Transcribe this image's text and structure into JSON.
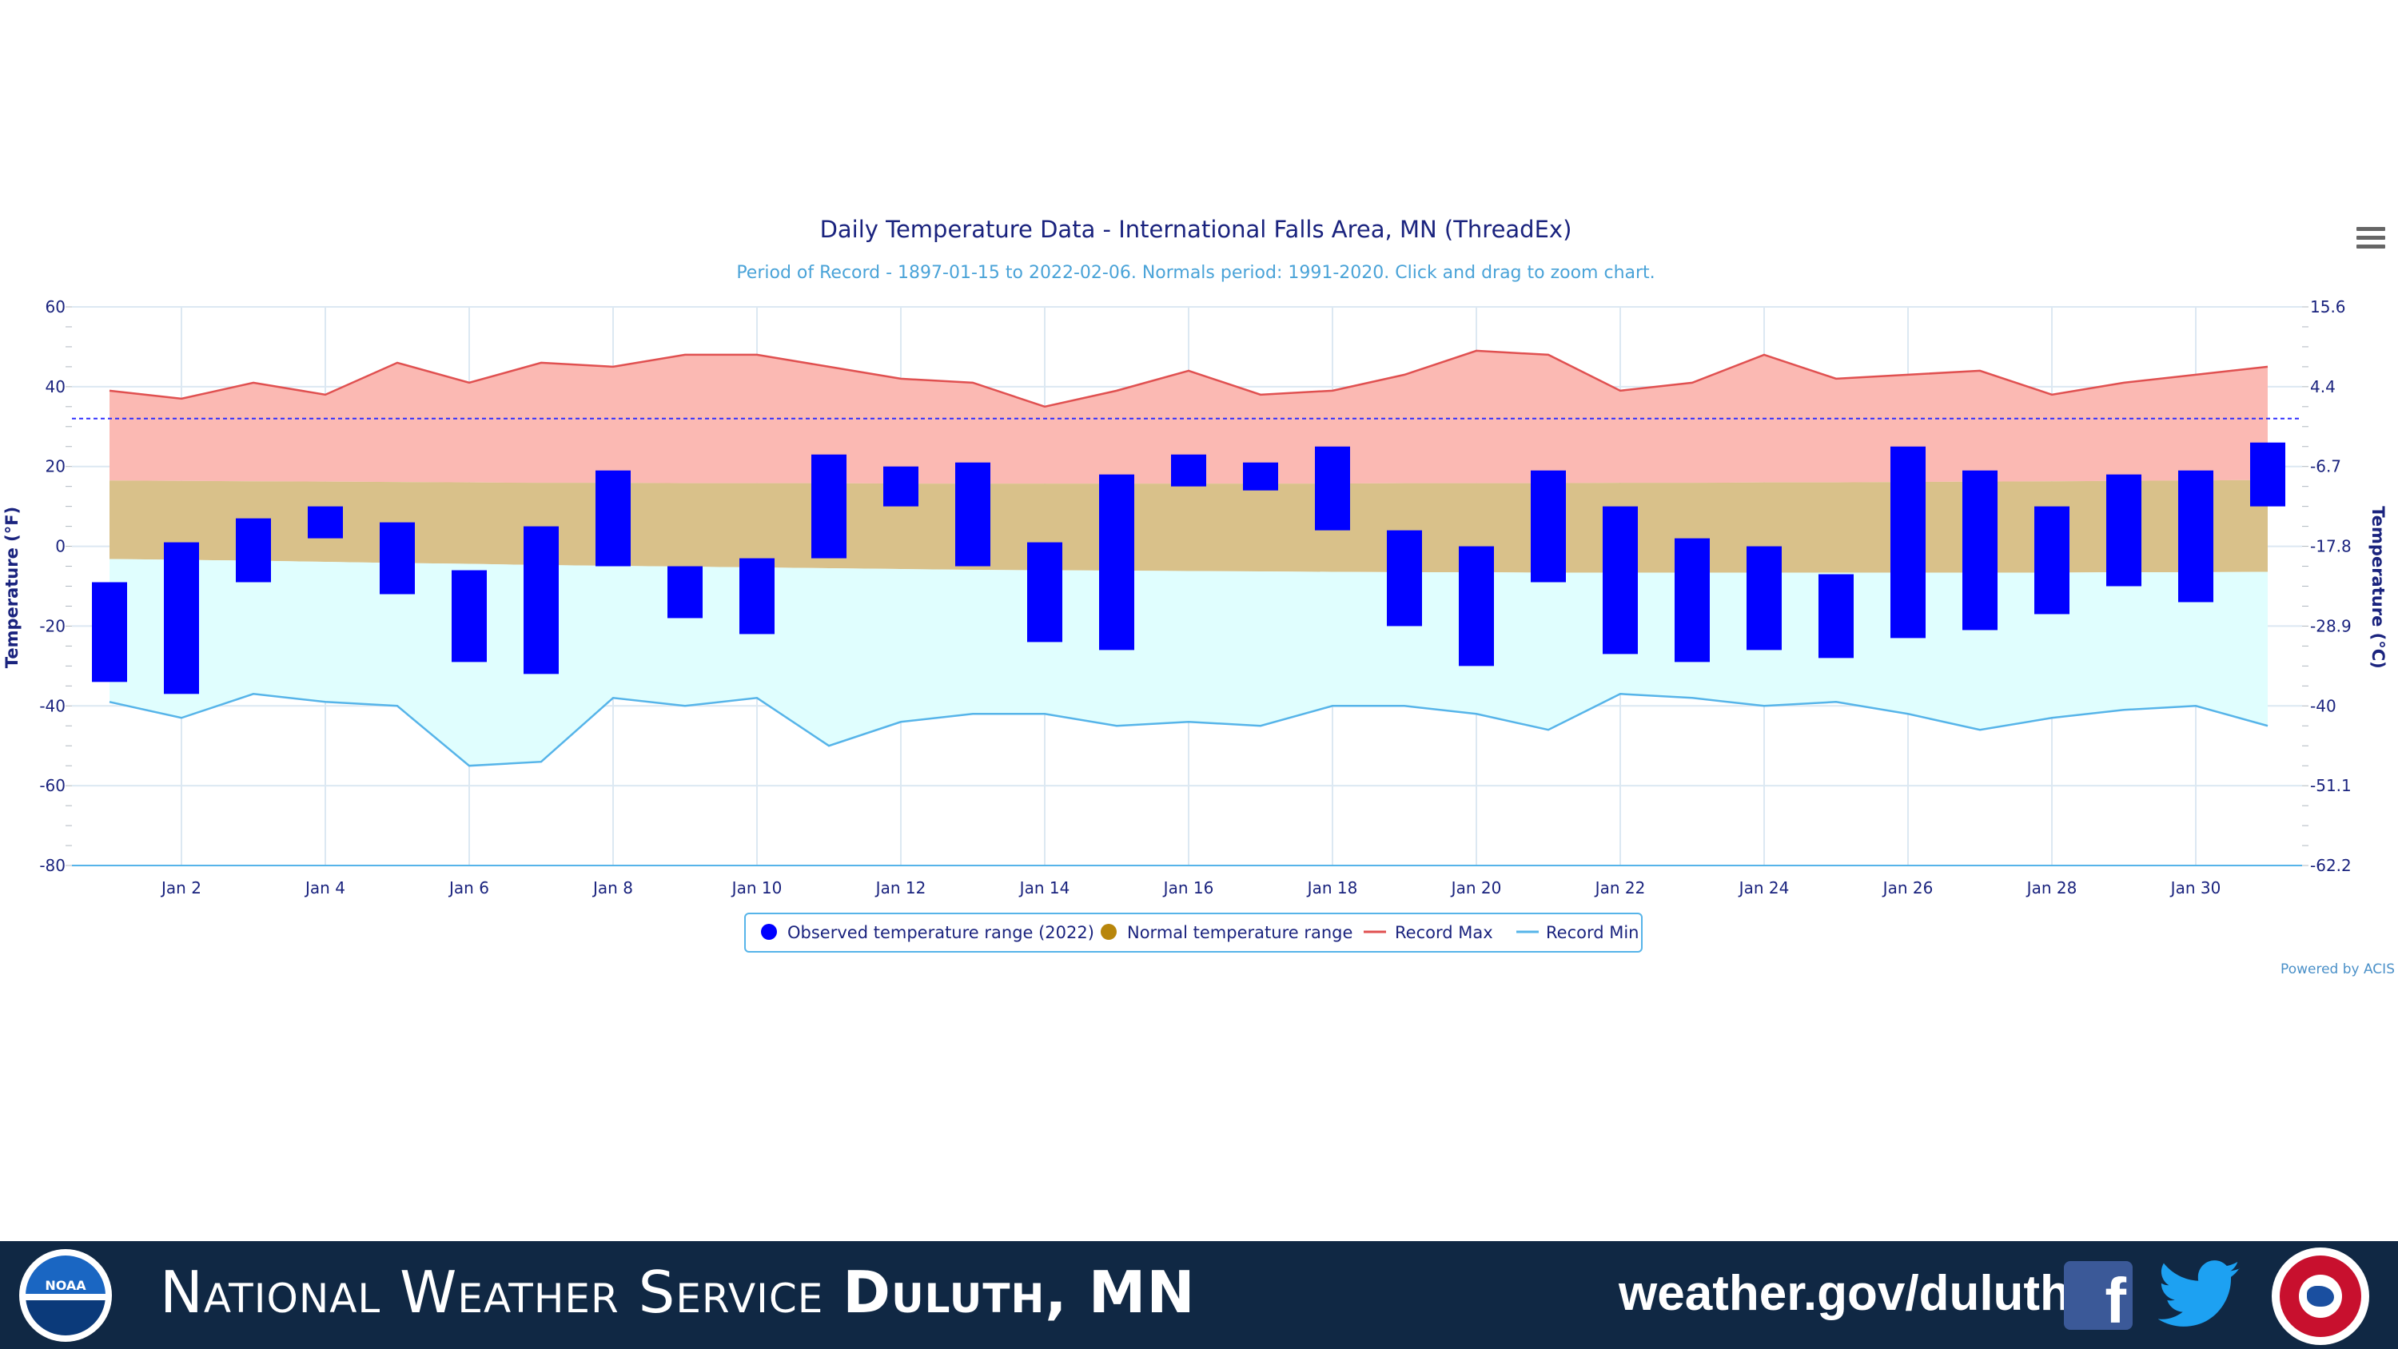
{
  "chart_data": {
    "type": "floating-bar",
    "title": "Daily Temperature Data - International Falls Area, MN (ThreadEx)",
    "subtitle": "Period of Record - 1897-01-15 to 2022-02-06. Normals period: 1991-2020. Click and drag to zoom chart.",
    "ylabel_left": "Temperature (°F)",
    "ylabel_right": "Temperature (°C)",
    "ylim": [
      -80,
      60
    ],
    "yticks_left": [
      "60",
      "40",
      "20",
      "0",
      "-20",
      "-40",
      "-60",
      "-80"
    ],
    "yticks_right": [
      "15.6",
      "4.4",
      "-6.7",
      "-17.8",
      "-28.9",
      "-40",
      "-51.1",
      "-62.2"
    ],
    "xlabels": [
      "Jan 2",
      "Jan 4",
      "Jan 6",
      "Jan 8",
      "Jan 10",
      "Jan 12",
      "Jan 14",
      "Jan 16",
      "Jan 18",
      "Jan 20",
      "Jan 22",
      "Jan 24",
      "Jan 26",
      "Jan 28",
      "Jan 30"
    ],
    "freezing_line": 32,
    "days": [
      1,
      2,
      3,
      4,
      5,
      6,
      7,
      8,
      9,
      10,
      11,
      12,
      13,
      14,
      15,
      16,
      17,
      18,
      19,
      20,
      21,
      22,
      23,
      24,
      25,
      26,
      27,
      28,
      29,
      30,
      31
    ],
    "observed_high": [
      -9,
      1,
      7,
      10,
      6,
      -6,
      5,
      19,
      -5,
      -3,
      23,
      20,
      21,
      1,
      18,
      23,
      21,
      25,
      4,
      0,
      19,
      10,
      2,
      0,
      -7,
      25,
      19,
      10,
      18,
      19,
      26
    ],
    "observed_low": [
      -34,
      -37,
      -9,
      2,
      -12,
      -29,
      -32,
      -5,
      -18,
      -22,
      -3,
      10,
      -5,
      -24,
      -26,
      15,
      14,
      4,
      -20,
      -30,
      -9,
      -27,
      -29,
      -26,
      -28,
      -23,
      -21,
      -17,
      -10,
      -14,
      10
    ],
    "normal_high": [
      16.5,
      16.4,
      16.3,
      16.2,
      16.1,
      16.0,
      15.9,
      15.9,
      15.8,
      15.8,
      15.8,
      15.7,
      15.7,
      15.7,
      15.7,
      15.7,
      15.7,
      15.7,
      15.8,
      15.8,
      15.8,
      15.9,
      15.9,
      16.0,
      16.0,
      16.1,
      16.2,
      16.3,
      16.4,
      16.5,
      16.6
    ],
    "normal_low": [
      -3.2,
      -3.4,
      -3.6,
      -3.9,
      -4.2,
      -4.4,
      -4.7,
      -4.9,
      -5.1,
      -5.3,
      -5.5,
      -5.7,
      -5.9,
      -6.0,
      -6.1,
      -6.2,
      -6.3,
      -6.4,
      -6.5,
      -6.5,
      -6.6,
      -6.6,
      -6.6,
      -6.6,
      -6.6,
      -6.6,
      -6.6,
      -6.6,
      -6.5,
      -6.5,
      -6.4
    ],
    "record_max": [
      39,
      37,
      41,
      38,
      46,
      41,
      46,
      45,
      48,
      48,
      45,
      42,
      41,
      35,
      39,
      44,
      38,
      39,
      43,
      49,
      48,
      39,
      41,
      48,
      42,
      43,
      44,
      38,
      41,
      43,
      45
    ],
    "record_min": [
      -39,
      -43,
      -37,
      -39,
      -40,
      -55,
      -54,
      -38,
      -40,
      -38,
      -50,
      -44,
      -42,
      -42,
      -45,
      -44,
      -45,
      -40,
      -40,
      -42,
      -46,
      -37,
      -38,
      -40,
      -39,
      -42,
      -46,
      -43,
      -41,
      -40,
      -45
    ],
    "legend": [
      {
        "label": "Observed temperature range (2022)",
        "color": "#0000ff",
        "marker": "dot"
      },
      {
        "label": "Normal temperature range",
        "color": "#b8860b",
        "marker": "dot"
      },
      {
        "label": "Record Max",
        "color": "#e05050",
        "marker": "line"
      },
      {
        "label": "Record Min",
        "color": "#56b4e9",
        "marker": "line"
      }
    ],
    "colors": {
      "observed": "#0000ff",
      "normal_fill": "#d9c18a",
      "record_max_fill": "#fbb9b3",
      "record_max_line": "#e05050",
      "record_min_fill": "#e0fefe",
      "record_min_line": "#56b4e9",
      "freezing_line": "#3030ff"
    }
  },
  "credit": "Powered by ACIS",
  "footer": {
    "org_prefix": "National Weather Service",
    "org_office": "Duluth, MN",
    "url": "weather.gov/duluth",
    "noaa_logo_text": "NOAA",
    "icons": [
      "noaa-logo",
      "facebook-icon",
      "twitter-icon",
      "nws-logo"
    ]
  }
}
